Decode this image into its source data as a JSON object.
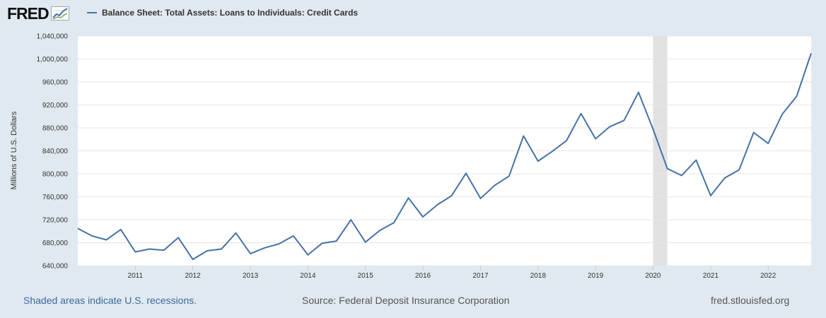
{
  "header": {
    "logo_text": "FRED",
    "logo_icon": "trend-line-icon",
    "legend_label": "Balance Sheet: Total Assets: Loans to Individuals: Credit Cards",
    "series_color": "#4572a7"
  },
  "chart_data": {
    "type": "line",
    "title": "",
    "xlabel": "",
    "ylabel": "Millions of U.S. Dollars",
    "ylim": [
      640000,
      1040000
    ],
    "y_ticks": [
      640000,
      680000,
      720000,
      760000,
      800000,
      840000,
      880000,
      920000,
      960000,
      1000000,
      1040000
    ],
    "y_tick_labels": [
      "640,000",
      "680,000",
      "720,000",
      "760,000",
      "800,000",
      "840,000",
      "880,000",
      "920,000",
      "960,000",
      "1,000,000",
      "1,040,000"
    ],
    "x_tick_labels": [
      "2011",
      "2012",
      "2013",
      "2014",
      "2015",
      "2016",
      "2017",
      "2018",
      "2019",
      "2020",
      "2021",
      "2022"
    ],
    "xlim": [
      "2010-01-01",
      "2022-10-01"
    ],
    "grid": true,
    "recessions": [
      {
        "start": "2020-01-01",
        "end": "2020-04-01"
      }
    ],
    "series": [
      {
        "name": "Balance Sheet: Total Assets: Loans to Individuals: Credit Cards",
        "x": [
          "2010-01-01",
          "2010-04-01",
          "2010-07-01",
          "2010-10-01",
          "2011-01-01",
          "2011-04-01",
          "2011-07-01",
          "2011-10-01",
          "2012-01-01",
          "2012-04-01",
          "2012-07-01",
          "2012-10-01",
          "2013-01-01",
          "2013-04-01",
          "2013-07-01",
          "2013-10-01",
          "2014-01-01",
          "2014-04-01",
          "2014-07-01",
          "2014-10-01",
          "2015-01-01",
          "2015-04-01",
          "2015-07-01",
          "2015-10-01",
          "2016-01-01",
          "2016-04-01",
          "2016-07-01",
          "2016-10-01",
          "2017-01-01",
          "2017-04-01",
          "2017-07-01",
          "2017-10-01",
          "2018-01-01",
          "2018-04-01",
          "2018-07-01",
          "2018-10-01",
          "2019-01-01",
          "2019-04-01",
          "2019-07-01",
          "2019-10-01",
          "2020-01-01",
          "2020-04-01",
          "2020-07-01",
          "2020-10-01",
          "2021-01-01",
          "2021-04-01",
          "2021-07-01",
          "2021-10-01",
          "2022-01-01",
          "2022-04-01",
          "2022-07-01",
          "2022-10-01"
        ],
        "values": [
          705000,
          692000,
          685000,
          703000,
          664000,
          669000,
          667000,
          689000,
          651000,
          666000,
          669000,
          697000,
          661000,
          671000,
          678000,
          692000,
          659000,
          679000,
          683000,
          720000,
          681000,
          701000,
          715000,
          758000,
          725000,
          746000,
          762000,
          801000,
          757000,
          780000,
          796000,
          866000,
          822000,
          839000,
          858000,
          905000,
          861000,
          882000,
          893000,
          942000,
          878000,
          809000,
          797000,
          824000,
          762000,
          793000,
          807000,
          872000,
          853000,
          904000,
          935000,
          1010000
        ]
      }
    ]
  },
  "footer": {
    "recession_note": "Shaded areas indicate U.S. recessions.",
    "source": "Source: Federal Deposit Insurance Corporation",
    "site": "fred.stlouisfed.org"
  }
}
